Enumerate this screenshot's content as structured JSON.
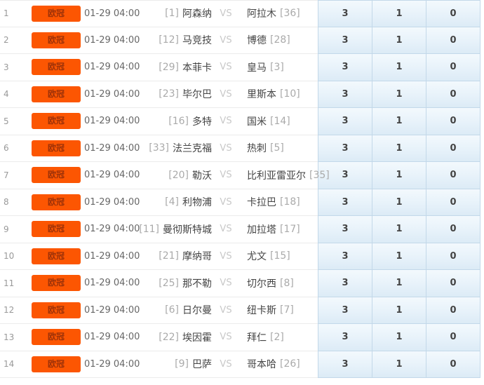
{
  "table": {
    "rows": [
      {
        "num": "1",
        "league": "欧冠",
        "time": "01-29 04:00",
        "home_rank": "[1]",
        "home_name": "阿森纳",
        "vs": "VS",
        "away_name": "阿拉木",
        "away_rank": "[36]",
        "c1": "3",
        "c2": "1",
        "c3": "0"
      },
      {
        "num": "2",
        "league": "欧冠",
        "time": "01-29 04:00",
        "home_rank": "[12]",
        "home_name": "马竞技",
        "vs": "VS",
        "away_name": "博德",
        "away_rank": "[28]",
        "c1": "3",
        "c2": "1",
        "c3": "0"
      },
      {
        "num": "3",
        "league": "欧冠",
        "time": "01-29 04:00",
        "home_rank": "[29]",
        "home_name": "本菲卡",
        "vs": "VS",
        "away_name": "皇马",
        "away_rank": "[3]",
        "c1": "3",
        "c2": "1",
        "c3": "0"
      },
      {
        "num": "4",
        "league": "欧冠",
        "time": "01-29 04:00",
        "home_rank": "[23]",
        "home_name": "毕尔巴",
        "vs": "VS",
        "away_name": "里斯本",
        "away_rank": "[10]",
        "c1": "3",
        "c2": "1",
        "c3": "0"
      },
      {
        "num": "5",
        "league": "欧冠",
        "time": "01-29 04:00",
        "home_rank": "[16]",
        "home_name": "多特",
        "vs": "VS",
        "away_name": "国米",
        "away_rank": "[14]",
        "c1": "3",
        "c2": "1",
        "c3": "0"
      },
      {
        "num": "6",
        "league": "欧冠",
        "time": "01-29 04:00",
        "home_rank": "[33]",
        "home_name": "法兰克福",
        "vs": "VS",
        "away_name": "热刺",
        "away_rank": "[5]",
        "c1": "3",
        "c2": "1",
        "c3": "0"
      },
      {
        "num": "7",
        "league": "欧冠",
        "time": "01-29 04:00",
        "home_rank": "[20]",
        "home_name": "勒沃",
        "vs": "VS",
        "away_name": "比利亚雷亚尔",
        "away_rank": "[35]",
        "c1": "3",
        "c2": "1",
        "c3": "0"
      },
      {
        "num": "8",
        "league": "欧冠",
        "time": "01-29 04:00",
        "home_rank": "[4]",
        "home_name": "利物浦",
        "vs": "VS",
        "away_name": "卡拉巴",
        "away_rank": "[18]",
        "c1": "3",
        "c2": "1",
        "c3": "0"
      },
      {
        "num": "9",
        "league": "欧冠",
        "time": "01-29 04:00",
        "home_rank": "[11]",
        "home_name": "曼彻斯特城",
        "vs": "VS",
        "away_name": "加拉塔",
        "away_rank": "[17]",
        "c1": "3",
        "c2": "1",
        "c3": "0"
      },
      {
        "num": "10",
        "league": "欧冠",
        "time": "01-29 04:00",
        "home_rank": "[21]",
        "home_name": "摩纳哥",
        "vs": "VS",
        "away_name": "尤文",
        "away_rank": "[15]",
        "c1": "3",
        "c2": "1",
        "c3": "0"
      },
      {
        "num": "11",
        "league": "欧冠",
        "time": "01-29 04:00",
        "home_rank": "[25]",
        "home_name": "那不勒",
        "vs": "VS",
        "away_name": "切尔西",
        "away_rank": "[8]",
        "c1": "3",
        "c2": "1",
        "c3": "0"
      },
      {
        "num": "12",
        "league": "欧冠",
        "time": "01-29 04:00",
        "home_rank": "[6]",
        "home_name": "日尔曼",
        "vs": "VS",
        "away_name": "纽卡斯",
        "away_rank": "[7]",
        "c1": "3",
        "c2": "1",
        "c3": "0"
      },
      {
        "num": "13",
        "league": "欧冠",
        "time": "01-29 04:00",
        "home_rank": "[22]",
        "home_name": "埃因霍",
        "vs": "VS",
        "away_name": "拜仁",
        "away_rank": "[2]",
        "c1": "3",
        "c2": "1",
        "c3": "0"
      },
      {
        "num": "14",
        "league": "欧冠",
        "time": "01-29 04:00",
        "home_rank": "[9]",
        "home_name": "巴萨",
        "vs": "VS",
        "away_name": "哥本哈",
        "away_rank": "[26]",
        "c1": "3",
        "c2": "1",
        "c3": "0"
      }
    ],
    "colors": {
      "badge_bg": "#fc5602",
      "badge_text": "#9e3208",
      "score_cell_border": "#c3d8e9",
      "row_separator": "#ebebeb"
    }
  }
}
